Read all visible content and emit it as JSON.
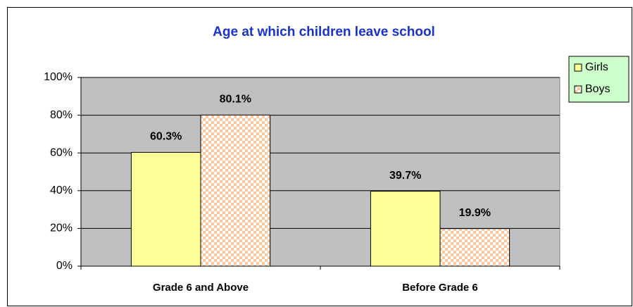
{
  "chart_data": {
    "type": "bar",
    "title": "Age at which children leave school",
    "categories": [
      "Grade 6 and Above",
      "Before Grade 6"
    ],
    "series": [
      {
        "name": "Girls",
        "color": "#ffff99",
        "values": [
          60.3,
          39.7
        ],
        "value_labels": [
          "60.3%",
          "39.7%"
        ]
      },
      {
        "name": "Boys",
        "color": "#fbc99b",
        "values": [
          80.1,
          19.9
        ],
        "value_labels": [
          "80.1%",
          "19.9%"
        ]
      }
    ],
    "ylim": [
      0,
      100
    ],
    "yticks": [
      {
        "value": 0,
        "label": "0%"
      },
      {
        "value": 20,
        "label": "20%"
      },
      {
        "value": 40,
        "label": "40%"
      },
      {
        "value": 60,
        "label": "60%"
      },
      {
        "value": 80,
        "label": "80%"
      },
      {
        "value": 100,
        "label": "100%"
      }
    ],
    "grid": true,
    "legend": "right"
  }
}
